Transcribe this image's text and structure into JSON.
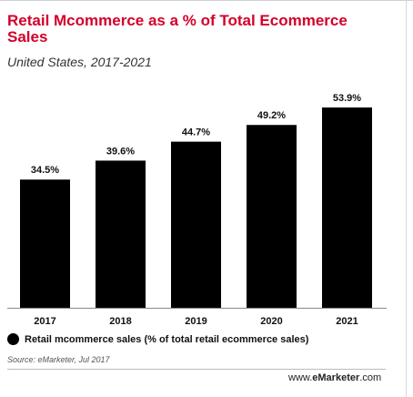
{
  "title": "Retail Mcommerce as a % of Total Ecommerce Sales",
  "subtitle": "United States, 2017-2021",
  "source": "Source: eMarketer, Jul 2017",
  "brand": {
    "prefix": "www.",
    "accent": "eMarketer",
    "suffix": ".com"
  },
  "colors": {
    "title": "#d4002a",
    "bar": "#000000",
    "text": "#111111"
  },
  "chart_data": {
    "type": "bar",
    "categories": [
      "2017",
      "2018",
      "2019",
      "2020",
      "2021"
    ],
    "series": [
      {
        "name": "Retail mcommerce sales (% of total retail ecommerce sales)",
        "values": [
          34.5,
          39.6,
          44.7,
          49.2,
          53.9
        ]
      }
    ],
    "data_labels": [
      "34.5%",
      "39.6%",
      "44.7%",
      "49.2%",
      "53.9%"
    ],
    "ylim": [
      0,
      62
    ],
    "grid": false,
    "legend": "bottom-left"
  }
}
